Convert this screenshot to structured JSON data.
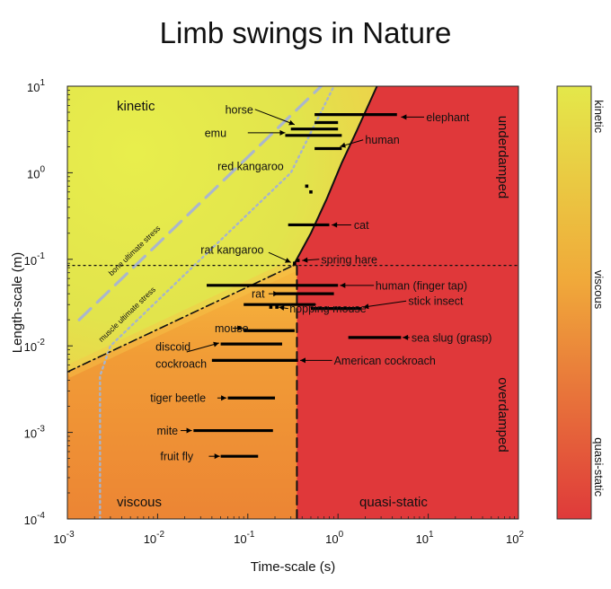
{
  "chart_data": {
    "type": "scatter",
    "title": "Limb swings in Nature",
    "xlabel": "Time-scale (s)",
    "ylabel": "Length-scale (m)",
    "xscale": "log",
    "yscale": "log",
    "xlim": [
      0.001,
      100
    ],
    "ylim": [
      0.0001,
      10
    ],
    "x_ticks": [
      {
        "v": 0.001,
        "b": "10",
        "e": "-3"
      },
      {
        "v": 0.01,
        "b": "10",
        "e": "-2"
      },
      {
        "v": 0.1,
        "b": "10",
        "e": "-1"
      },
      {
        "v": 1,
        "b": "10",
        "e": "0"
      },
      {
        "v": 10,
        "b": "10",
        "e": "1"
      },
      {
        "v": 100,
        "b": "10",
        "e": "2"
      }
    ],
    "y_ticks": [
      {
        "v": 0.0001,
        "b": "10",
        "e": "-4"
      },
      {
        "v": 0.001,
        "b": "10",
        "e": "-3"
      },
      {
        "v": 0.01,
        "b": "10",
        "e": "-2"
      },
      {
        "v": 0.1,
        "b": "10",
        "e": "-1"
      },
      {
        "v": 1,
        "b": "10",
        "e": "0"
      },
      {
        "v": 10,
        "b": "10",
        "e": "1"
      }
    ],
    "regions": {
      "kinetic": "kinetic",
      "viscous": "viscous",
      "quasi_static": "quasi-static",
      "underdamped": "underdamped",
      "overdamped": "overdamped"
    },
    "lines": [
      {
        "label": "bone ultimate stress",
        "style": "dashed",
        "color": "#aab6cc",
        "points": [
          [
            0.00135,
            0.02
          ],
          [
            0.65,
            10
          ]
        ]
      },
      {
        "label": "muscle ultimate stress",
        "style": "dotted",
        "color": "#a7b4cc",
        "points": [
          [
            0.0023,
            0.0001
          ],
          [
            0.0023,
            0.0045
          ],
          [
            0.003,
            0.01
          ],
          [
            0.03,
            0.1
          ],
          [
            0.3,
            1
          ],
          [
            0.9,
            10
          ]
        ]
      },
      {
        "label": "",
        "style": "solid",
        "color": "#111111",
        "points": [
          [
            0.32,
            0.085
          ],
          [
            0.5,
            0.2
          ],
          [
            0.75,
            0.5
          ],
          [
            1.1,
            1.3
          ],
          [
            1.6,
            3
          ],
          [
            2.7,
            10
          ]
        ]
      },
      {
        "label": "",
        "style": "dashdot",
        "color": "#111111",
        "points": [
          [
            0.001,
            0.005
          ],
          [
            0.32,
            0.085
          ]
        ]
      },
      {
        "label": "",
        "style": "dotted",
        "color": "#111111",
        "points": [
          [
            0.001,
            0.085
          ],
          [
            100,
            0.085
          ]
        ]
      },
      {
        "label": "",
        "style": "dashed",
        "color": "#111111",
        "points": [
          [
            0.35,
            0.0001
          ],
          [
            0.35,
            0.085
          ]
        ]
      }
    ],
    "bars": [
      {
        "y": 4.7,
        "x0": 0.55,
        "x1": 4.5
      },
      {
        "y": 3.8,
        "x0": 0.55,
        "x1": 1.0
      },
      {
        "y": 3.2,
        "x0": 0.3,
        "x1": 1.0
      },
      {
        "y": 2.7,
        "x0": 0.26,
        "x1": 1.1
      },
      {
        "y": 1.9,
        "x0": 0.55,
        "x1": 1.1
      },
      {
        "y": 0.25,
        "x0": 0.28,
        "x1": 0.8
      },
      {
        "y": 0.05,
        "x0": 0.035,
        "x1": 1.0
      },
      {
        "y": 0.04,
        "x0": 0.2,
        "x1": 0.9
      },
      {
        "y": 0.03,
        "x0": 0.09,
        "x1": 0.56
      },
      {
        "y": 0.027,
        "x0": 0.5,
        "x1": 1.8
      },
      {
        "y": 0.015,
        "x0": 0.09,
        "x1": 0.33
      },
      {
        "y": 0.0125,
        "x0": 1.3,
        "x1": 5.0
      },
      {
        "y": 0.0105,
        "x0": 0.05,
        "x1": 0.24
      },
      {
        "y": 0.0068,
        "x0": 0.04,
        "x1": 0.36
      },
      {
        "y": 0.0025,
        "x0": 0.06,
        "x1": 0.2
      },
      {
        "y": 0.00105,
        "x0": 0.025,
        "x1": 0.19
      },
      {
        "y": 0.00053,
        "x0": 0.05,
        "x1": 0.13
      }
    ],
    "points": [
      {
        "x": 0.45,
        "y": 0.7
      },
      {
        "x": 0.5,
        "y": 0.6
      },
      {
        "x": 0.18,
        "y": 0.028
      },
      {
        "x": 0.21,
        "y": 0.028
      },
      {
        "x": 0.33,
        "y": 0.09
      },
      {
        "x": 0.36,
        "y": 0.097
      }
    ],
    "annotations": [
      {
        "text": "horse",
        "x": 0.115,
        "y": 5.4,
        "anchor": "end",
        "arrow": [
          [
            0.12,
            5.4
          ],
          [
            0.33,
            3.6
          ]
        ]
      },
      {
        "text": "emu",
        "x": 0.058,
        "y": 2.9,
        "anchor": "end",
        "arrow": [
          [
            0.1,
            2.9
          ],
          [
            0.26,
            2.9
          ]
        ]
      },
      {
        "text": "red kangaroo",
        "x": 0.25,
        "y": 1.2,
        "anchor": "end",
        "arrow": null
      },
      {
        "text": "elephant",
        "x": 9.5,
        "y": 4.4,
        "anchor": "start",
        "arrow": [
          [
            9,
            4.4
          ],
          [
            5.0,
            4.4
          ]
        ]
      },
      {
        "text": "human",
        "x": 2.0,
        "y": 2.4,
        "anchor": "start",
        "arrow": [
          [
            1.9,
            2.4
          ],
          [
            1.05,
            2.0
          ]
        ]
      },
      {
        "text": "cat",
        "x": 1.5,
        "y": 0.25,
        "anchor": "start",
        "arrow": [
          [
            1.4,
            0.25
          ],
          [
            0.85,
            0.25
          ]
        ]
      },
      {
        "text": "rat kangaroo",
        "x": 0.03,
        "y": 0.13,
        "anchor": "start",
        "arrow": [
          [
            0.17,
            0.12
          ],
          [
            0.3,
            0.092
          ]
        ]
      },
      {
        "text": "spring hare",
        "x": 0.65,
        "y": 0.1,
        "anchor": "start",
        "arrow": [
          [
            0.62,
            0.1
          ],
          [
            0.4,
            0.097
          ]
        ]
      },
      {
        "text": "human (finger tap)",
        "x": 2.6,
        "y": 0.05,
        "anchor": "start",
        "arrow": [
          [
            2.5,
            0.05
          ],
          [
            1.05,
            0.05
          ]
        ]
      },
      {
        "text": "rat",
        "x": 0.11,
        "y": 0.04,
        "anchor": "start",
        "arrow": [
          [
            0.17,
            0.04
          ],
          [
            0.22,
            0.04
          ]
        ]
      },
      {
        "text": "stick insect",
        "x": 6.0,
        "y": 0.033,
        "anchor": "start",
        "arrow": [
          [
            5.7,
            0.033
          ],
          [
            1.9,
            0.028
          ]
        ]
      },
      {
        "text": "hopping mouse",
        "x": 0.29,
        "y": 0.027,
        "anchor": "start",
        "arrow": [
          [
            0.28,
            0.027
          ],
          [
            0.22,
            0.028
          ]
        ]
      },
      {
        "text": "mouse",
        "x": 0.043,
        "y": 0.016,
        "anchor": "start",
        "arrow": [
          [
            0.068,
            0.016
          ],
          [
            0.088,
            0.016
          ]
        ]
      },
      {
        "text": "sea slug (grasp)",
        "x": 6.5,
        "y": 0.0125,
        "anchor": "start",
        "arrow": [
          [
            6.2,
            0.0125
          ],
          [
            5.2,
            0.0125
          ]
        ]
      },
      {
        "text": "discoid",
        "x": 0.0095,
        "y": 0.0098,
        "anchor": "start",
        "arrow": [
          [
            0.021,
            0.0085
          ],
          [
            0.048,
            0.0108
          ]
        ]
      },
      {
        "text": "cockroach",
        "x": 0.0095,
        "y": 0.0062,
        "anchor": "start",
        "arrow": null
      },
      {
        "text": "American cockroach",
        "x": 0.9,
        "y": 0.0068,
        "anchor": "start",
        "arrow": [
          [
            0.86,
            0.0068
          ],
          [
            0.38,
            0.0068
          ]
        ]
      },
      {
        "text": "tiger beetle",
        "x": 0.0083,
        "y": 0.0025,
        "anchor": "start",
        "arrow": [
          [
            0.046,
            0.0025
          ],
          [
            0.058,
            0.0025
          ]
        ]
      },
      {
        "text": "mite",
        "x": 0.0098,
        "y": 0.00105,
        "anchor": "start",
        "arrow": [
          [
            0.018,
            0.00105
          ],
          [
            0.024,
            0.00105
          ]
        ]
      },
      {
        "text": "fruit fly",
        "x": 0.0107,
        "y": 0.00053,
        "anchor": "start",
        "arrow": [
          [
            0.037,
            0.00053
          ],
          [
            0.049,
            0.00053
          ]
        ]
      }
    ],
    "colorbar": {
      "labels": [
        {
          "text": "kinetic",
          "f": 0.07
        },
        {
          "text": "viscous",
          "f": 0.47
        },
        {
          "text": "quasi-static",
          "f": 0.88
        }
      ],
      "colors": [
        "#e4e84a",
        "#f0a93a",
        "#df3a3a"
      ]
    }
  }
}
